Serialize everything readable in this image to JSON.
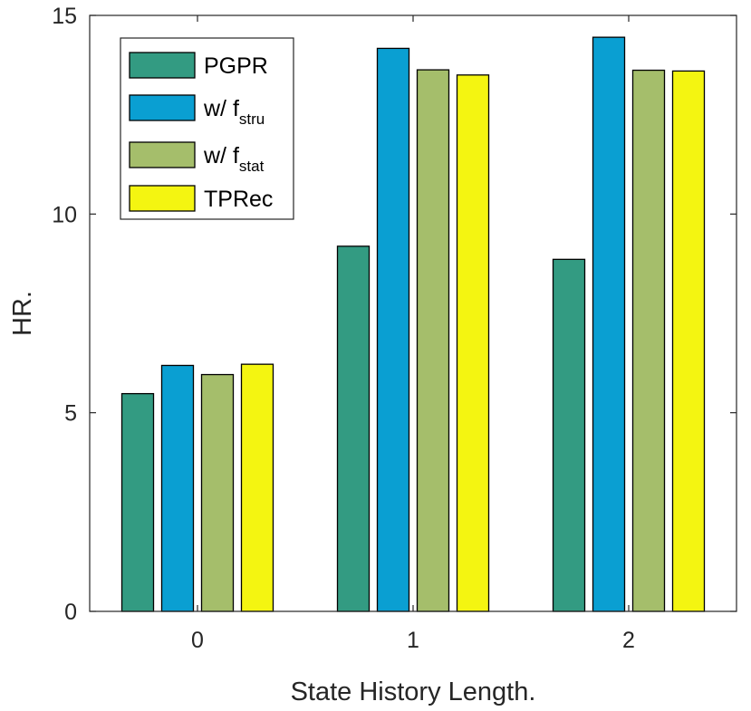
{
  "chart_data": {
    "type": "bar",
    "categories": [
      "0",
      "1",
      "2"
    ],
    "series": [
      {
        "name": "PGPR",
        "legend_main": "PGPR",
        "legend_sub": "",
        "color": "#339b82",
        "values": [
          5.48,
          9.19,
          8.86
        ]
      },
      {
        "name": "w/ f_stru",
        "legend_main": "w/ f",
        "legend_sub": "stru",
        "color": "#0a9fd2",
        "values": [
          6.19,
          14.17,
          14.45
        ]
      },
      {
        "name": "w/ f_stat",
        "legend_main": "w/ f",
        "legend_sub": "stat",
        "color": "#a5be6b",
        "values": [
          5.96,
          13.63,
          13.62
        ]
      },
      {
        "name": "TPRec",
        "legend_main": "TPRec",
        "legend_sub": "",
        "color": "#f4f511",
        "values": [
          6.22,
          13.5,
          13.6
        ]
      }
    ],
    "xlabel": "State History Length.",
    "ylabel": "HR.",
    "ylim": [
      0,
      15
    ],
    "yticks": [
      0,
      5,
      10,
      15
    ],
    "grid": false,
    "legend_position": "top-left"
  }
}
